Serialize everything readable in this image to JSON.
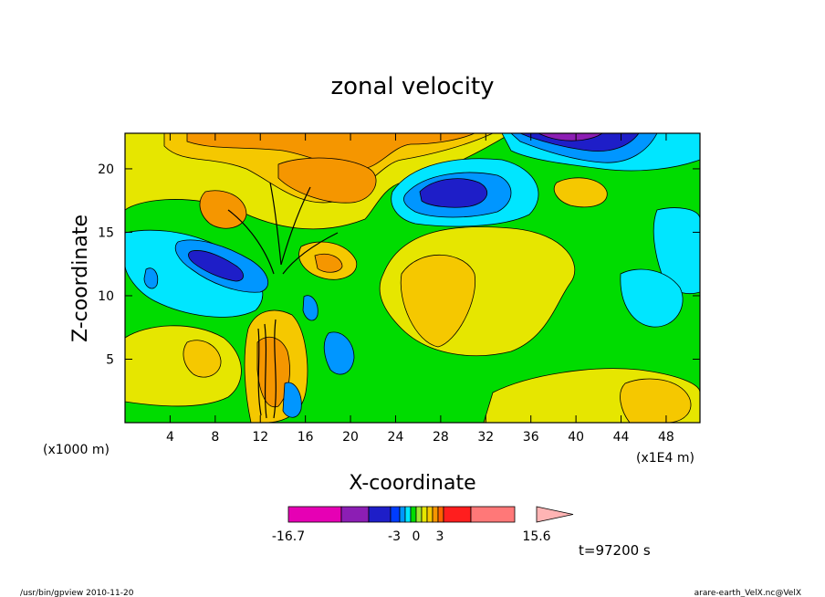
{
  "chart_data": {
    "type": "heatmap",
    "title": "zonal velocity",
    "xlabel": "X-coordinate",
    "ylabel": "Z-coordinate",
    "x_unit_left": "(x1000 m)",
    "x_unit_right": "(x1E4 m)",
    "xticks": [
      "4",
      "8",
      "12",
      "16",
      "20",
      "24",
      "28",
      "32",
      "36",
      "40",
      "44",
      "48"
    ],
    "yticks": [
      "5",
      "10",
      "15",
      "20"
    ],
    "xlim": [
      0,
      51
    ],
    "ylim": [
      0,
      22.8
    ],
    "colorbar": {
      "levels": [
        -16.7,
        -3,
        0,
        3,
        15.6
      ],
      "labels": [
        "-16.7",
        "-3",
        "0",
        "3",
        "15.6"
      ],
      "colors": [
        "#e600b4",
        "#8c1eb4",
        "#1e1ec8",
        "#003cff",
        "#0096ff",
        "#00e6ff",
        "#00dc00",
        "#a0e632",
        "#e6e600",
        "#f5c800",
        "#f59600",
        "#ff6400",
        "#ff1e1e",
        "#ff7878",
        "#ffb4b4"
      ]
    },
    "annotation": "t=97200 s"
  },
  "footer": {
    "left": "/usr/bin/gpview  2010-11-20",
    "right": "arare-earth_VelX.nc@VelX"
  }
}
